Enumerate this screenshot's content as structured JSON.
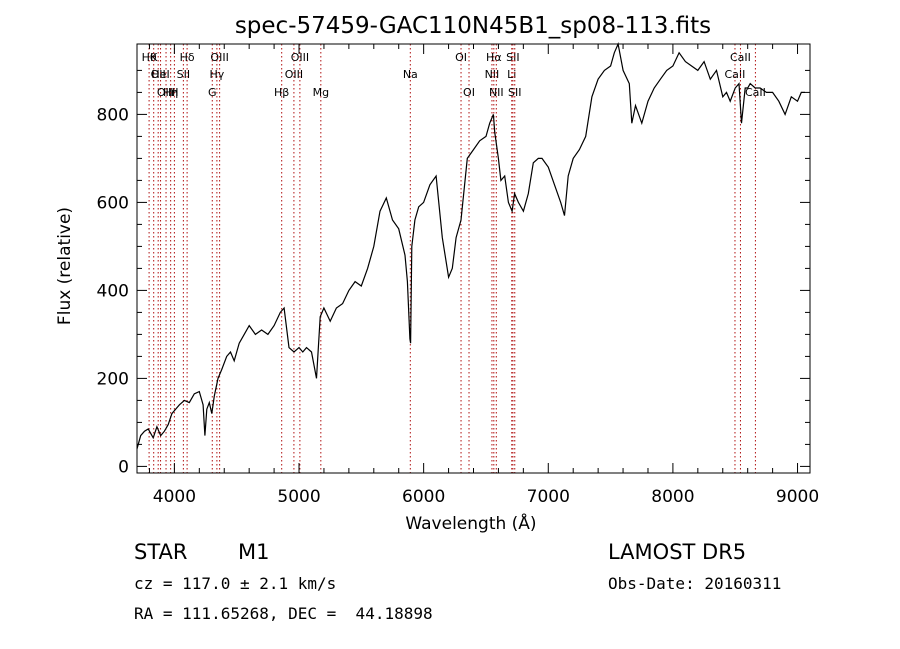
{
  "chart_data": {
    "type": "line",
    "title": "spec-57459-GAC110N45B1_sp08-113.fits",
    "xlabel": "Wavelength (Å)",
    "ylabel": "Flux (relative)",
    "xlim": [
      3700,
      9100
    ],
    "ylim": [
      -15,
      960
    ],
    "xticks": [
      4000,
      5000,
      6000,
      7000,
      8000,
      9000
    ],
    "yticks": [
      0,
      200,
      400,
      600,
      800
    ],
    "grid": false,
    "series": [
      {
        "x": [
          3700,
          3730,
          3760,
          3790,
          3830,
          3860,
          3890,
          3920,
          3950,
          3980,
          4010,
          4040,
          4080,
          4120,
          4160,
          4200,
          4230,
          4245,
          4260,
          4280,
          4300,
          4320,
          4350,
          4380,
          4420,
          4450,
          4480,
          4520,
          4560,
          4600,
          4650,
          4700,
          4750,
          4800,
          4850,
          4880,
          4920,
          4960,
          5000,
          5030,
          5060,
          5100,
          5140,
          5170,
          5200,
          5250,
          5300,
          5350,
          5400,
          5450,
          5500,
          5550,
          5600,
          5650,
          5700,
          5750,
          5800,
          5850,
          5870,
          5890,
          5895,
          5905,
          5930,
          5960,
          6000,
          6050,
          6100,
          6150,
          6200,
          6230,
          6260,
          6300,
          6350,
          6400,
          6450,
          6500,
          6530,
          6560,
          6570,
          6600,
          6620,
          6650,
          6680,
          6710,
          6730,
          6760,
          6800,
          6840,
          6880,
          6920,
          6950,
          7000,
          7050,
          7100,
          7130,
          7160,
          7200,
          7250,
          7300,
          7350,
          7400,
          7450,
          7500,
          7530,
          7560,
          7600,
          7650,
          7670,
          7700,
          7750,
          7800,
          7850,
          7900,
          7950,
          8000,
          8050,
          8100,
          8150,
          8200,
          8250,
          8300,
          8350,
          8400,
          8430,
          8460,
          8500,
          8530,
          8550,
          8580,
          8600,
          8620,
          8660,
          8700,
          8750,
          8800,
          8850,
          8900,
          8950,
          9000,
          9030,
          9060
        ],
        "y": [
          40,
          70,
          80,
          85,
          65,
          90,
          70,
          80,
          95,
          120,
          130,
          140,
          150,
          145,
          165,
          170,
          140,
          70,
          130,
          145,
          120,
          160,
          200,
          220,
          250,
          260,
          240,
          280,
          300,
          320,
          300,
          310,
          300,
          320,
          350,
          360,
          270,
          260,
          270,
          260,
          270,
          260,
          200,
          340,
          360,
          330,
          360,
          370,
          400,
          420,
          410,
          450,
          500,
          580,
          610,
          560,
          540,
          480,
          420,
          290,
          280,
          500,
          560,
          590,
          600,
          640,
          660,
          520,
          430,
          450,
          520,
          560,
          700,
          720,
          740,
          750,
          780,
          800,
          760,
          700,
          650,
          660,
          600,
          580,
          620,
          600,
          580,
          620,
          690,
          700,
          700,
          680,
          640,
          600,
          570,
          660,
          700,
          720,
          750,
          840,
          880,
          900,
          910,
          940,
          960,
          900,
          870,
          780,
          820,
          780,
          830,
          860,
          880,
          900,
          910,
          940,
          920,
          910,
          900,
          920,
          880,
          900,
          840,
          850,
          830,
          860,
          870,
          780,
          860,
          860,
          870,
          860,
          860,
          850,
          850,
          830,
          800,
          840,
          830,
          850,
          850
        ]
      }
    ],
    "lines": [
      {
        "x": 3797,
        "label": "Hθ",
        "row": 1
      },
      {
        "x": 3834,
        "label": "K",
        "row": 1
      },
      {
        "x": 3870,
        "label": "OII",
        "row": 2
      },
      {
        "x": 3889,
        "label": "HeI",
        "row": 2
      },
      {
        "x": 3933,
        "label": "OIII",
        "row": 3
      },
      {
        "x": 3970,
        "label": "Hη",
        "row": 3
      },
      {
        "x": 4072,
        "label": "SII",
        "row": 2
      },
      {
        "x": 4102,
        "label": "Hδ",
        "row": 1
      },
      {
        "x": 4000,
        "label": "H",
        "row": 3
      },
      {
        "x": 4304,
        "label": "G",
        "row": 3
      },
      {
        "x": 4341,
        "label": "Hγ",
        "row": 2
      },
      {
        "x": 4363,
        "label": "OIII",
        "row": 1
      },
      {
        "x": 4861,
        "label": "Hβ",
        "row": 3
      },
      {
        "x": 4959,
        "label": "OIII",
        "row": 2
      },
      {
        "x": 5007,
        "label": "OIII",
        "row": 1
      },
      {
        "x": 5175,
        "label": "Mg",
        "row": 3
      },
      {
        "x": 5893,
        "label": "Na",
        "row": 2
      },
      {
        "x": 6300,
        "label": "OI",
        "row": 1
      },
      {
        "x": 6364,
        "label": "OI",
        "row": 3
      },
      {
        "x": 6548,
        "label": "NII",
        "row": 2
      },
      {
        "x": 6563,
        "label": "Hα",
        "row": 1
      },
      {
        "x": 6583,
        "label": "NII",
        "row": 3
      },
      {
        "x": 6707,
        "label": "Li",
        "row": 2
      },
      {
        "x": 6716,
        "label": "SII",
        "row": 1
      },
      {
        "x": 6731,
        "label": "SII",
        "row": 3
      },
      {
        "x": 8498,
        "label": "CaII",
        "row": 2
      },
      {
        "x": 8542,
        "label": "CaII",
        "row": 1
      },
      {
        "x": 8662,
        "label": "CaII",
        "row": 3
      }
    ]
  },
  "info": {
    "object_class": "STAR",
    "subclass": "M1",
    "survey": "LAMOST DR5",
    "cz": "cz = 117.0 ± 2.1 km/s",
    "obs_date": "Obs-Date: 20160311",
    "coords": "RA = 111.65268, DEC =  44.18898"
  }
}
